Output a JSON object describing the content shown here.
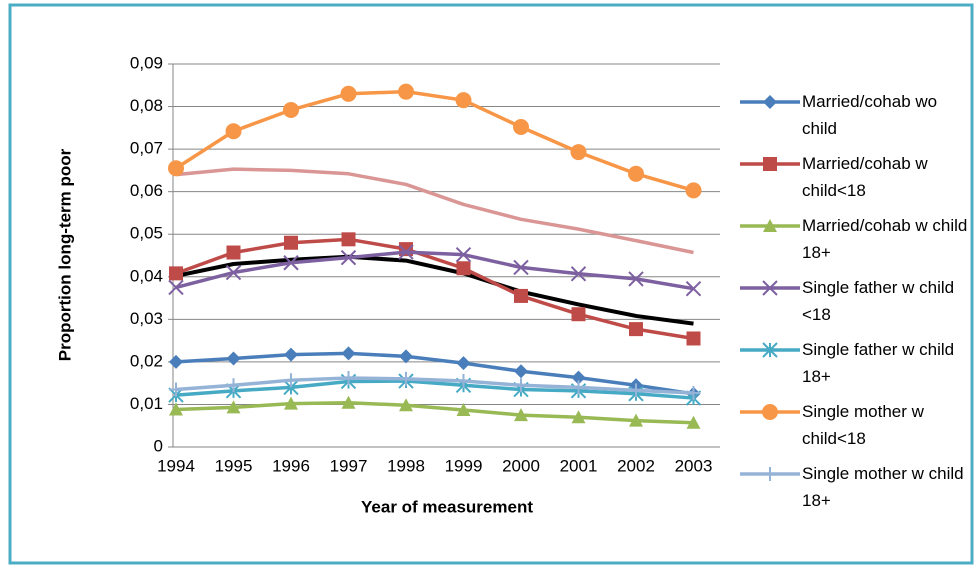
{
  "chart_data": {
    "type": "line",
    "y_label": "Proportion long-term poor",
    "x_label": "Year of  measurement",
    "categories": [
      "1994",
      "1995",
      "1996",
      "1997",
      "1998",
      "1999",
      "2000",
      "2001",
      "2002",
      "2003"
    ],
    "ylim": [
      0,
      0.09
    ],
    "yticks": [
      0,
      {
        "value": 0.01,
        "label": "0,01"
      },
      {
        "value": 0.02,
        "label": "0,02"
      },
      {
        "value": 0.03,
        "label": "0,03"
      },
      {
        "value": 0.04,
        "label": "0,04"
      },
      {
        "value": 0.05,
        "label": "0,05"
      },
      {
        "value": 0.06,
        "label": "0,06"
      },
      {
        "value": 0.07,
        "label": "0,07"
      },
      {
        "value": 0.08,
        "label": "0,08"
      },
      {
        "value": 0.09,
        "label": "0,09"
      }
    ],
    "grid": true,
    "legend": "right",
    "series": [
      {
        "name": "Married/cohab wo child",
        "color": "#4a7ebb",
        "marker": "diamond",
        "values": [
          0.02,
          0.0208,
          0.0217,
          0.022,
          0.0213,
          0.0197,
          0.0178,
          0.0163,
          0.0145,
          0.0125
        ]
      },
      {
        "name": "Married/cohab w child<18",
        "color": "#be4b48",
        "marker": "square",
        "values": [
          0.0408,
          0.0457,
          0.048,
          0.0488,
          0.0465,
          0.042,
          0.0355,
          0.0312,
          0.0277,
          0.0255
        ]
      },
      {
        "name": "Married/cohab w child 18+",
        "color": "#98b954",
        "marker": "triangle",
        "values": [
          0.0088,
          0.0093,
          0.0102,
          0.0104,
          0.0098,
          0.0087,
          0.0075,
          0.007,
          0.0062,
          0.0057
        ]
      },
      {
        "name": "Single father w child <18",
        "color": "#7d60a0",
        "marker": "x",
        "values": [
          0.0375,
          0.041,
          0.0433,
          0.0445,
          0.0458,
          0.0452,
          0.0422,
          0.0407,
          0.0395,
          0.0372
        ]
      },
      {
        "name": "Single father w child 18+",
        "color": "#46aac5",
        "marker": "star",
        "values": [
          0.0122,
          0.0132,
          0.014,
          0.0154,
          0.0155,
          0.0145,
          0.0135,
          0.0132,
          0.0125,
          0.0115
        ]
      },
      {
        "name": "Single mother w child<18",
        "color": "#f79646",
        "marker": "circle",
        "values": [
          0.0655,
          0.0742,
          0.0792,
          0.083,
          0.0835,
          0.0815,
          0.0752,
          0.0693,
          0.0642,
          0.0603
        ]
      },
      {
        "name": "Single mother w child 18+",
        "color": "#95b3d7",
        "marker": "plus",
        "values": [
          0.0135,
          0.0145,
          0.0157,
          0.0162,
          0.016,
          0.0155,
          0.0145,
          0.014,
          0.0133,
          0.0127
        ]
      },
      {
        "color": "#d99694",
        "values": [
          0.064,
          0.0653,
          0.065,
          0.0642,
          0.0617,
          0.057,
          0.0535,
          0.0512,
          0.0485,
          0.0457
        ]
      },
      {
        "color": "#000000",
        "values": [
          0.0402,
          0.043,
          0.044,
          0.0447,
          0.0438,
          0.0408,
          0.0365,
          0.0335,
          0.0308,
          0.029
        ]
      }
    ]
  }
}
